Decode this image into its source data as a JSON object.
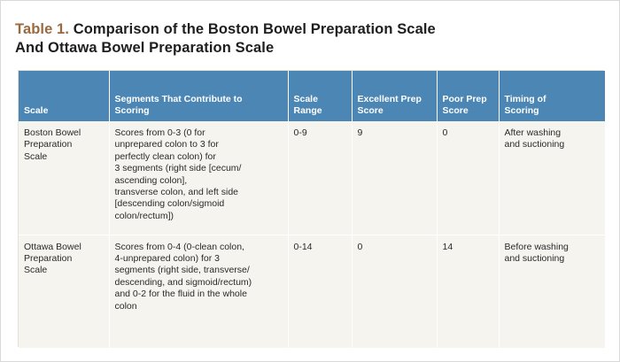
{
  "caption": {
    "label": "Table 1.",
    "title": " Comparison of the Boston Bowel Preparation Scale\nAnd Ottawa Bowel Preparation Scale"
  },
  "table": {
    "headers": [
      "Scale",
      "Segments That Contribute to\nScoring",
      "Scale\nRange",
      "Excellent Prep\nScore",
      "Poor Prep\nScore",
      "Timing of\nScoring"
    ],
    "rows": [
      [
        "Boston Bowel\nPreparation\nScale",
        "Scores from 0-3 (0 for\nunprepared colon to 3 for\nperfectly clean colon) for\n3 segments (right side [cecum/\nascending colon],\ntransverse colon, and left side\n[descending colon/sigmoid\ncolon/rectum])",
        "0-9",
        "9",
        "0",
        "After washing\nand suctioning"
      ],
      [
        "Ottawa Bowel\nPreparation\nScale",
        "Scores from 0-4 (0-clean colon,\n4-unprepared colon) for 3\nsegments (right side, transverse/\ndescending, and sigmoid/rectum)\nand 0-2 for the fluid in the whole\ncolon",
        "0-14",
        "0",
        "14",
        "Before washing\nand suctioning"
      ]
    ]
  },
  "colors": {
    "header_bg": "#4b86b4",
    "row_bg": "#f6f4ee",
    "caption_label": "#9a6a3f"
  }
}
